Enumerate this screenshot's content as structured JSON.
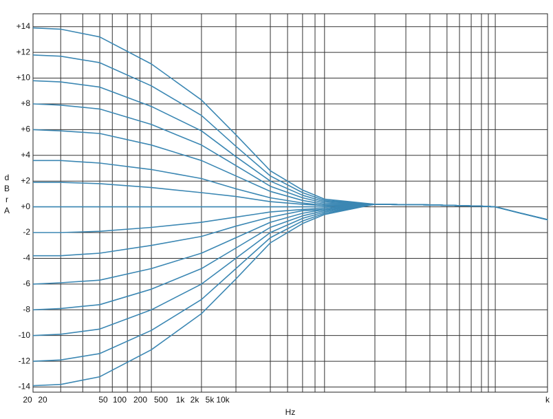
{
  "chart_data": {
    "type": "line",
    "ylabel": "dBrA",
    "xlabel": "Hz",
    "x_tick_labels": [
      "20",
      "20",
      "50",
      "100",
      "200",
      "500",
      "1k",
      "2k",
      "5k",
      "10k",
      "k"
    ],
    "xscale": "log",
    "xlim": [
      20,
      20000
    ],
    "x_grid": [
      29,
      39,
      49,
      58,
      71,
      84,
      98,
      192,
      305,
      484,
      610,
      746,
      882,
      1002,
      1970,
      2986,
      4122,
      5188,
      6136,
      7180,
      8240,
      9040,
      9920
    ],
    "ylim": [
      -14.4,
      15
    ],
    "yticks": [
      {
        "value": 14,
        "label": "+14"
      },
      {
        "value": 12,
        "label": "+12"
      },
      {
        "value": 10,
        "label": "+10"
      },
      {
        "value": 8,
        "label": "+8"
      },
      {
        "value": 6,
        "label": "+6"
      },
      {
        "value": 4,
        "label": "+4"
      },
      {
        "value": 2,
        "label": "+2"
      },
      {
        "value": 0,
        "label": "+0"
      },
      -2,
      -4,
      -6,
      -8,
      -10,
      -12,
      -14
    ],
    "grid": true,
    "color": "#3b87b3",
    "x": [
      20,
      29,
      49,
      98,
      192,
      305,
      484,
      746,
      1002,
      1970,
      4122,
      8240,
      9920,
      14000,
      20000
    ],
    "series": [
      {
        "values": [
          13.9,
          13.8,
          13.2,
          11.1,
          8.3,
          5.6,
          2.8,
          1.3,
          0.6,
          0.2,
          0.15,
          0.05,
          0,
          -0.5,
          -1.0
        ]
      },
      {
        "values": [
          11.8,
          11.7,
          11.2,
          9.4,
          7.1,
          4.7,
          2.4,
          1.1,
          0.5,
          0.2,
          0.15,
          0.05,
          0,
          -0.5,
          -1.0
        ]
      },
      {
        "values": [
          9.8,
          9.7,
          9.3,
          7.8,
          5.9,
          3.9,
          2.0,
          0.9,
          0.4,
          0.2,
          0.15,
          0.05,
          0,
          -0.5,
          -1.0
        ]
      },
      {
        "values": [
          8.0,
          7.9,
          7.6,
          6.4,
          4.8,
          3.2,
          1.6,
          0.7,
          0.3,
          0.2,
          0.15,
          0.05,
          0,
          -0.5,
          -1.0
        ]
      },
      {
        "values": [
          6.0,
          5.9,
          5.7,
          4.8,
          3.6,
          2.4,
          1.2,
          0.5,
          0.2,
          0.2,
          0.15,
          0.05,
          0,
          -0.5,
          -1.0
        ]
      },
      {
        "values": [
          3.6,
          3.6,
          3.4,
          2.9,
          2.2,
          1.4,
          0.7,
          0.3,
          0.1,
          0.2,
          0.15,
          0.05,
          0,
          -0.5,
          -1.0
        ]
      },
      {
        "values": [
          1.9,
          1.9,
          1.8,
          1.5,
          1.1,
          0.8,
          0.4,
          0.2,
          0.1,
          0.2,
          0.15,
          0.05,
          0,
          -0.5,
          -1.0
        ]
      },
      {
        "values": [
          0,
          0,
          0,
          0,
          0,
          0,
          0,
          0,
          0,
          0.2,
          0.15,
          0.05,
          0,
          -0.5,
          -1.0
        ]
      },
      {
        "values": [
          -2.0,
          -2.0,
          -1.9,
          -1.6,
          -1.2,
          -0.8,
          -0.4,
          -0.2,
          -0.1,
          0.2,
          0.15,
          0.05,
          0,
          -0.5,
          -1.0
        ]
      },
      {
        "values": [
          -3.8,
          -3.8,
          -3.6,
          -3.0,
          -2.3,
          -1.5,
          -0.8,
          -0.3,
          -0.2,
          0.2,
          0.15,
          0.05,
          0,
          -0.5,
          -1.0
        ]
      },
      {
        "values": [
          -6.0,
          -5.9,
          -5.7,
          -4.8,
          -3.6,
          -2.4,
          -1.2,
          -0.5,
          -0.2,
          0.2,
          0.15,
          0.05,
          0,
          -0.5,
          -1.0
        ]
      },
      {
        "values": [
          -8.0,
          -7.9,
          -7.6,
          -6.4,
          -4.8,
          -3.2,
          -1.6,
          -0.7,
          -0.3,
          0.2,
          0.15,
          0.05,
          0,
          -0.5,
          -1.0
        ]
      },
      {
        "values": [
          -10.0,
          -9.9,
          -9.5,
          -8.0,
          -6.0,
          -4.0,
          -2.0,
          -0.9,
          -0.4,
          0.2,
          0.15,
          0.05,
          0,
          -0.5,
          -1.0
        ]
      },
      {
        "values": [
          -12.0,
          -11.9,
          -11.4,
          -9.6,
          -7.2,
          -4.8,
          -2.4,
          -1.1,
          -0.5,
          0.2,
          0.15,
          0.05,
          0,
          -0.5,
          -1.0
        ]
      },
      {
        "values": [
          -13.9,
          -13.8,
          -13.2,
          -11.1,
          -8.3,
          -5.6,
          -2.8,
          -1.3,
          -0.6,
          0.2,
          0.15,
          0.05,
          0,
          -0.5,
          -1.0
        ]
      }
    ]
  }
}
